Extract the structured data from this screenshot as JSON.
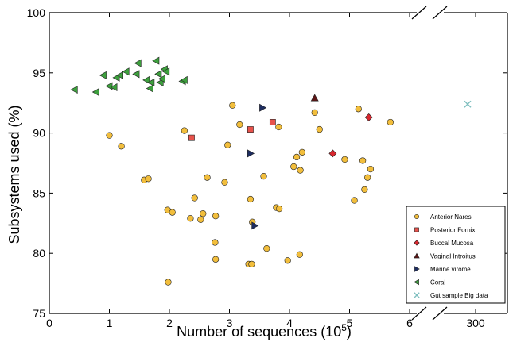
{
  "chart_data": {
    "type": "scatter",
    "xlabel": "Number of sequences (10",
    "xlabel_superscript": "5",
    "xlabel_suffix": ")",
    "ylabel": "Subsystems used (%)",
    "xlim": [
      0,
      6.6
    ],
    "broken_axis_segment_label": "300",
    "ylim": [
      75,
      100
    ],
    "x_ticks": [
      "0",
      "1",
      "2",
      "3",
      "4",
      "5",
      "6"
    ],
    "y_ticks": [
      "75",
      "80",
      "85",
      "90",
      "95",
      "100"
    ],
    "grid": false,
    "legend_position": "lower-right",
    "series": [
      {
        "name": "Anterior Nares",
        "marker": "circle",
        "color": "#f2be3c",
        "points": [
          [
            1.0,
            89.8
          ],
          [
            1.2,
            88.9
          ],
          [
            1.58,
            86.1
          ],
          [
            1.65,
            86.2
          ],
          [
            1.97,
            83.6
          ],
          [
            2.05,
            83.4
          ],
          [
            1.98,
            77.6
          ],
          [
            2.25,
            90.2
          ],
          [
            2.35,
            82.9
          ],
          [
            2.42,
            84.6
          ],
          [
            2.52,
            82.8
          ],
          [
            2.56,
            83.3
          ],
          [
            2.63,
            86.3
          ],
          [
            2.77,
            83.1
          ],
          [
            2.76,
            80.9
          ],
          [
            2.77,
            79.5
          ],
          [
            2.92,
            85.9
          ],
          [
            2.97,
            89.0
          ],
          [
            3.05,
            92.3
          ],
          [
            3.17,
            90.7
          ],
          [
            3.35,
            84.5
          ],
          [
            3.38,
            82.6
          ],
          [
            3.32,
            79.1
          ],
          [
            3.37,
            79.1
          ],
          [
            3.57,
            86.4
          ],
          [
            3.62,
            80.4
          ],
          [
            3.78,
            83.8
          ],
          [
            3.83,
            83.7
          ],
          [
            3.82,
            90.5
          ],
          [
            3.97,
            79.4
          ],
          [
            4.07,
            87.2
          ],
          [
            4.12,
            88.0
          ],
          [
            4.18,
            86.9
          ],
          [
            4.21,
            88.4
          ],
          [
            4.17,
            79.9
          ],
          [
            4.42,
            91.7
          ],
          [
            4.5,
            90.3
          ],
          [
            4.92,
            87.8
          ],
          [
            5.08,
            84.4
          ],
          [
            5.15,
            92.0
          ],
          [
            5.22,
            87.7
          ],
          [
            5.25,
            85.3
          ],
          [
            5.3,
            86.3
          ],
          [
            5.35,
            87.0
          ],
          [
            5.68,
            90.9
          ]
        ]
      },
      {
        "name": "Posterior Fornix",
        "marker": "square",
        "color": "#e8524b",
        "points": [
          [
            2.37,
            89.6
          ],
          [
            3.35,
            90.3
          ],
          [
            3.72,
            90.9
          ]
        ]
      },
      {
        "name": "Buccal Mucosa",
        "marker": "diamond",
        "color": "#d8272f",
        "points": [
          [
            4.72,
            88.3
          ],
          [
            5.32,
            91.3
          ]
        ]
      },
      {
        "name": "Vaginal Introitus",
        "marker": "triangle-up",
        "color": "#5c1616",
        "points": [
          [
            4.42,
            92.9
          ]
        ]
      },
      {
        "name": "Marine virome",
        "marker": "triangle-right",
        "color": "#1e2d60",
        "points": [
          [
            3.55,
            92.1
          ],
          [
            3.35,
            88.3
          ],
          [
            3.42,
            82.3
          ]
        ]
      },
      {
        "name": "Coral",
        "marker": "triangle-left",
        "color": "#3da03d",
        "points": [
          [
            0.42,
            93.6
          ],
          [
            0.78,
            93.4
          ],
          [
            0.9,
            94.8
          ],
          [
            1.0,
            93.9
          ],
          [
            1.08,
            93.8
          ],
          [
            1.12,
            94.6
          ],
          [
            1.18,
            94.8
          ],
          [
            1.28,
            95.1
          ],
          [
            1.45,
            94.9
          ],
          [
            1.48,
            95.8
          ],
          [
            1.62,
            94.4
          ],
          [
            1.68,
            93.7
          ],
          [
            1.7,
            94.2
          ],
          [
            1.78,
            96.0
          ],
          [
            1.82,
            94.9
          ],
          [
            1.85,
            94.2
          ],
          [
            1.88,
            94.5
          ],
          [
            1.92,
            95.3
          ],
          [
            1.95,
            95.1
          ],
          [
            2.22,
            94.3
          ],
          [
            2.25,
            94.4
          ]
        ]
      },
      {
        "name": "Gut sample Big data",
        "marker": "x",
        "color": "#7fbfbf",
        "points_broken_axis": [
          [
            300,
            92.4
          ]
        ]
      }
    ]
  }
}
